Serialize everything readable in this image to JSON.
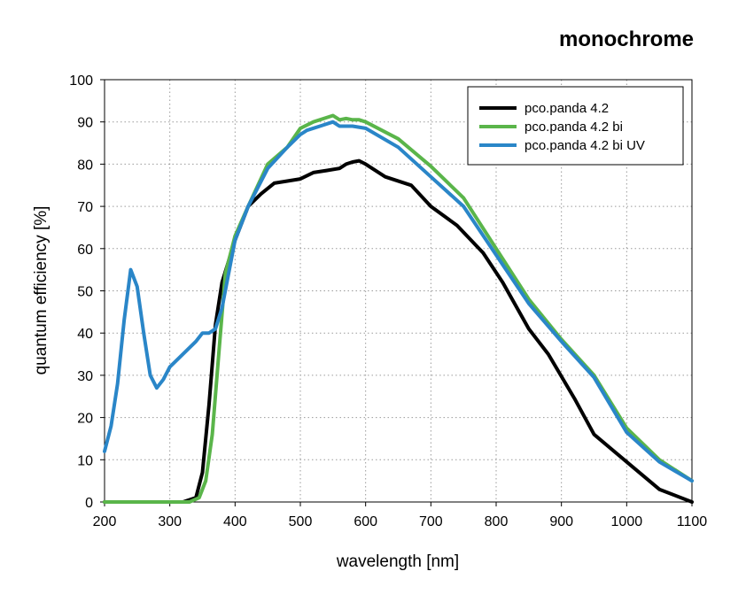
{
  "chart_data": {
    "type": "line",
    "title": "monochrome",
    "xlabel": "wavelength [nm]",
    "ylabel": "quantum efficiency [%]",
    "xlim": [
      200,
      1100
    ],
    "ylim": [
      0,
      100
    ],
    "xticks": [
      200,
      300,
      400,
      500,
      600,
      700,
      800,
      900,
      1000,
      1100
    ],
    "yticks": [
      0,
      10,
      20,
      30,
      40,
      50,
      60,
      70,
      80,
      90,
      100
    ],
    "grid": true,
    "legend_position": "top-right",
    "series": [
      {
        "name": "pco.panda 4.2",
        "color": "#000000",
        "x": [
          200,
          300,
          320,
          340,
          350,
          360,
          370,
          380,
          390,
          400,
          420,
          440,
          460,
          480,
          500,
          520,
          540,
          560,
          570,
          580,
          590,
          600,
          630,
          670,
          700,
          740,
          780,
          810,
          850,
          880,
          920,
          950,
          1000,
          1050,
          1100
        ],
        "y": [
          0,
          0,
          0,
          1,
          7,
          23,
          42,
          52,
          57,
          62,
          70,
          73,
          75.5,
          76,
          76.5,
          78,
          78.5,
          79,
          80,
          80.5,
          80.8,
          80,
          77,
          75,
          70,
          65.5,
          59,
          52,
          41,
          35,
          24.5,
          16,
          9.5,
          3,
          0
        ]
      },
      {
        "name": "pco.panda 4.2 bi",
        "color": "#5ab54a",
        "x": [
          200,
          330,
          345,
          355,
          365,
          375,
          385,
          400,
          420,
          450,
          480,
          500,
          520,
          540,
          550,
          560,
          570,
          580,
          590,
          600,
          650,
          700,
          750,
          800,
          850,
          900,
          950,
          1000,
          1050,
          1100
        ],
        "y": [
          0,
          0,
          1,
          5,
          16,
          35,
          54,
          63,
          70,
          80,
          84,
          88.5,
          90,
          91,
          91.5,
          90.5,
          90.8,
          90.5,
          90.5,
          90,
          86,
          79.5,
          72,
          60,
          48,
          38.5,
          30,
          17.5,
          10,
          5
        ]
      },
      {
        "name": "pco.panda 4.2 bi UV",
        "color": "#2a86c8",
        "x": [
          200,
          210,
          220,
          230,
          240,
          250,
          260,
          270,
          280,
          290,
          300,
          320,
          340,
          350,
          360,
          370,
          380,
          400,
          420,
          450,
          480,
          500,
          510,
          530,
          550,
          560,
          570,
          580,
          600,
          650,
          700,
          750,
          800,
          850,
          900,
          950,
          1000,
          1050,
          1100
        ],
        "y": [
          12,
          18,
          28,
          43,
          55,
          51,
          40,
          30,
          27,
          29,
          32,
          35,
          38,
          40,
          40,
          41,
          46,
          62,
          70,
          79,
          84,
          87,
          88,
          89,
          90,
          89,
          89,
          89,
          88.5,
          84,
          77,
          70,
          58.5,
          47,
          38,
          29.5,
          16.5,
          9.5,
          5
        ]
      }
    ]
  }
}
